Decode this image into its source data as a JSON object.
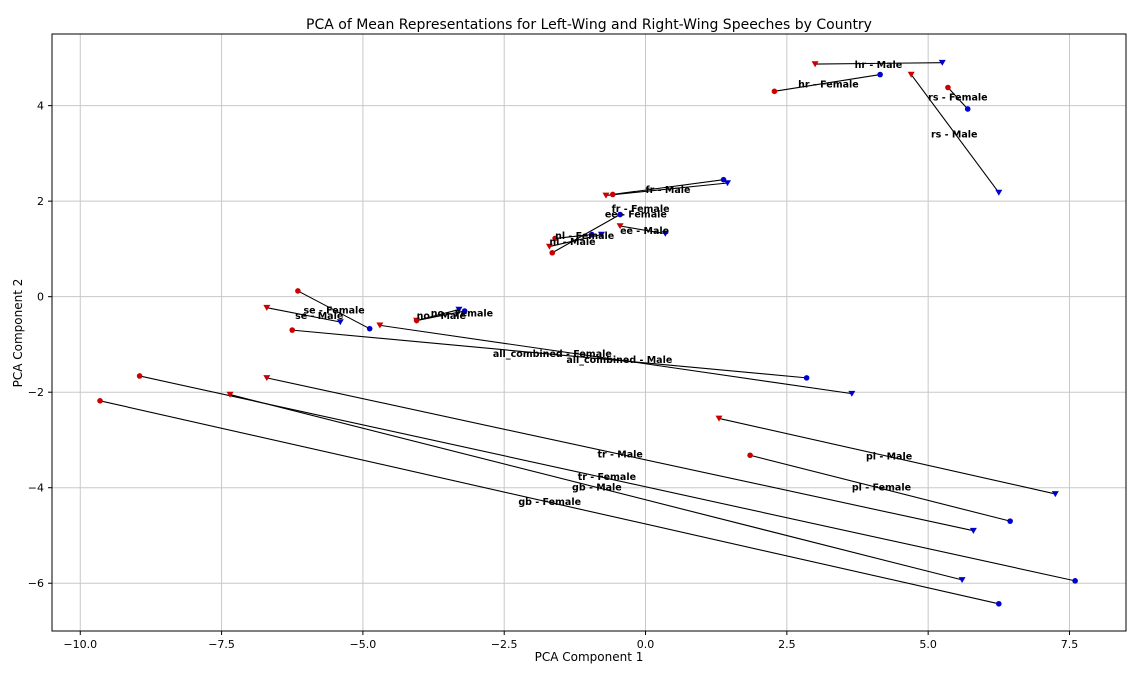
{
  "chart_data": {
    "type": "scatter",
    "title": "PCA of Mean Representations for Left-Wing and Right-Wing Speeches by Country",
    "xlabel": "PCA Component 1",
    "ylabel": "PCA Component 2",
    "xlim": [
      -10.5,
      8.5
    ],
    "ylim": [
      -7.0,
      5.5
    ],
    "xticks": [
      -10.0,
      -7.5,
      -5.0,
      -2.5,
      0.0,
      2.5,
      5.0,
      7.5
    ],
    "xtick_labels": [
      "−10.0",
      "−7.5",
      "−5.0",
      "−2.5",
      "0.0",
      "2.5",
      "5.0",
      "7.5"
    ],
    "yticks": [
      -6,
      -4,
      -2,
      0,
      2,
      4
    ],
    "ytick_labels": [
      "−6",
      "−4",
      "−2",
      "0",
      "2",
      "4"
    ],
    "grid": true,
    "colors": {
      "left": "#cc0000",
      "right": "#0000cc",
      "line": "#000000",
      "grid": "#c8c8c8"
    },
    "markers": {
      "female": "circle",
      "male": "triangle-down"
    },
    "pairs": [
      {
        "label": "hr - Male",
        "gender": "male",
        "left": [
          3.0,
          4.87
        ],
        "right": [
          5.25,
          4.9
        ],
        "label_pos": [
          3.7,
          4.85
        ]
      },
      {
        "label": "hr - Female",
        "gender": "female",
        "left": [
          2.28,
          4.3
        ],
        "right": [
          4.15,
          4.65
        ],
        "label_pos": [
          2.7,
          4.44
        ]
      },
      {
        "label": "rs - Female",
        "gender": "female",
        "left": [
          5.35,
          4.38
        ],
        "right": [
          5.7,
          3.93
        ],
        "label_pos": [
          5.0,
          4.17
        ]
      },
      {
        "label": "rs - Male",
        "gender": "male",
        "left": [
          4.7,
          4.65
        ],
        "right": [
          6.25,
          2.18
        ],
        "label_pos": [
          5.05,
          3.4
        ]
      },
      {
        "label": "fr - Male",
        "gender": "male",
        "left": [
          -0.7,
          2.12
        ],
        "right": [
          1.45,
          2.38
        ],
        "label_pos": [
          0.0,
          2.23
        ]
      },
      {
        "label": "fr - Female",
        "gender": "female",
        "left": [
          -0.58,
          2.14
        ],
        "right": [
          1.38,
          2.45
        ],
        "label_pos": [
          -0.6,
          1.84
        ]
      },
      {
        "label": "ee - Female",
        "gender": "female",
        "left": [
          -1.65,
          0.92
        ],
        "right": [
          -0.45,
          1.72
        ],
        "label_pos": [
          -0.72,
          1.72
        ]
      },
      {
        "label": "ee - Male",
        "gender": "male",
        "left": [
          -0.45,
          1.48
        ],
        "right": [
          0.35,
          1.32
        ],
        "label_pos": [
          -0.45,
          1.38
        ]
      },
      {
        "label": "nl - Female",
        "gender": "female",
        "left": [
          -1.6,
          1.22
        ],
        "right": [
          -0.95,
          1.3
        ],
        "label_pos": [
          -1.6,
          1.27
        ]
      },
      {
        "label": "nl - Male",
        "gender": "male",
        "left": [
          -1.7,
          1.05
        ],
        "right": [
          -0.78,
          1.3
        ],
        "label_pos": [
          -1.7,
          1.14
        ]
      },
      {
        "label": "no - Female",
        "gender": "female",
        "left": [
          -4.05,
          -0.5
        ],
        "right": [
          -3.2,
          -0.3
        ],
        "label_pos": [
          -3.8,
          -0.35
        ]
      },
      {
        "label": "no - Male",
        "gender": "male",
        "left": [
          -4.05,
          -0.5
        ],
        "right": [
          -3.3,
          -0.27
        ],
        "label_pos": [
          -4.05,
          -0.4
        ]
      },
      {
        "label": "se - Female",
        "gender": "female",
        "left": [
          -6.15,
          0.12
        ],
        "right": [
          -4.88,
          -0.67
        ],
        "label_pos": [
          -6.05,
          -0.29
        ]
      },
      {
        "label": "se - Male",
        "gender": "male",
        "left": [
          -6.7,
          -0.23
        ],
        "right": [
          -5.4,
          -0.53
        ],
        "label_pos": [
          -6.2,
          -0.4
        ]
      },
      {
        "label": "all_combined - Female",
        "gender": "female",
        "left": [
          -6.25,
          -0.7
        ],
        "right": [
          2.85,
          -1.7
        ],
        "label_pos": [
          -2.7,
          -1.2
        ]
      },
      {
        "label": "all_combined - Male",
        "gender": "male",
        "left": [
          -4.7,
          -0.6
        ],
        "right": [
          3.65,
          -2.03
        ],
        "label_pos": [
          -1.4,
          -1.33
        ]
      },
      {
        "label": "pl - Male",
        "gender": "male",
        "left": [
          1.3,
          -2.55
        ],
        "right": [
          7.25,
          -4.13
        ],
        "label_pos": [
          3.9,
          -3.35
        ]
      },
      {
        "label": "pl - Female",
        "gender": "female",
        "left": [
          1.85,
          -3.32
        ],
        "right": [
          6.45,
          -4.7
        ],
        "label_pos": [
          3.65,
          -4.0
        ]
      },
      {
        "label": "tr - Male",
        "gender": "male",
        "left": [
          -6.7,
          -1.7
        ],
        "right": [
          5.8,
          -4.9
        ],
        "label_pos": [
          -0.85,
          -3.3
        ]
      },
      {
        "label": "tr - Female",
        "gender": "female",
        "left": [
          -8.95,
          -1.66
        ],
        "right": [
          7.6,
          -5.95
        ],
        "label_pos": [
          -1.2,
          -3.78
        ]
      },
      {
        "label": "gb - Male",
        "gender": "male",
        "left": [
          -7.35,
          -2.05
        ],
        "right": [
          5.6,
          -5.93
        ],
        "label_pos": [
          -1.3,
          -4.0
        ]
      },
      {
        "label": "gb - Female",
        "gender": "female",
        "left": [
          -9.65,
          -2.18
        ],
        "right": [
          6.25,
          -6.43
        ],
        "label_pos": [
          -2.25,
          -4.3
        ]
      }
    ]
  }
}
